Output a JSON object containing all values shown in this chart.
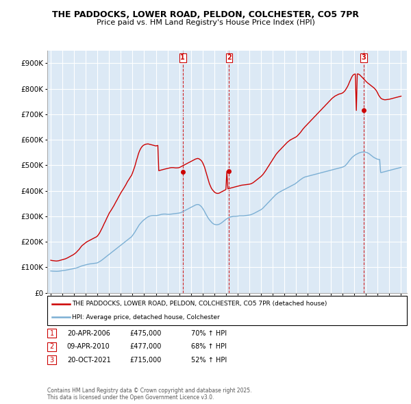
{
  "title": "THE PADDOCKS, LOWER ROAD, PELDON, COLCHESTER, CO5 7PR",
  "subtitle": "Price paid vs. HM Land Registry's House Price Index (HPI)",
  "ylim": [
    0,
    950000
  ],
  "yticks": [
    0,
    100000,
    200000,
    300000,
    400000,
    500000,
    600000,
    700000,
    800000,
    900000
  ],
  "ytick_labels": [
    "£0",
    "£100K",
    "£200K",
    "£300K",
    "£400K",
    "£500K",
    "£600K",
    "£700K",
    "£800K",
    "£900K"
  ],
  "plot_bg_color": "#dce9f5",
  "red_color": "#cc0000",
  "blue_color": "#7bafd4",
  "transaction_dates": [
    2006.3,
    2010.27,
    2021.8
  ],
  "transaction_values": [
    475000,
    477000,
    715000
  ],
  "transaction_labels": [
    "1",
    "2",
    "3"
  ],
  "legend_entry1": "THE PADDOCKS, LOWER ROAD, PELDON, COLCHESTER, CO5 7PR (detached house)",
  "legend_entry2": "HPI: Average price, detached house, Colchester",
  "table_entries": [
    [
      "1",
      "20-APR-2006",
      "£475,000",
      "70% ↑ HPI"
    ],
    [
      "2",
      "09-APR-2010",
      "£477,000",
      "68% ↑ HPI"
    ],
    [
      "3",
      "20-OCT-2021",
      "£715,000",
      "52% ↑ HPI"
    ]
  ],
  "footer": "Contains HM Land Registry data © Crown copyright and database right 2025.\nThis data is licensed under the Open Government Licence v3.0.",
  "hpi_x": [
    1995.0,
    1995.08,
    1995.17,
    1995.25,
    1995.33,
    1995.42,
    1995.5,
    1995.58,
    1995.67,
    1995.75,
    1995.83,
    1995.92,
    1996.0,
    1996.08,
    1996.17,
    1996.25,
    1996.33,
    1996.42,
    1996.5,
    1996.58,
    1996.67,
    1996.75,
    1996.83,
    1996.92,
    1997.0,
    1997.08,
    1997.17,
    1997.25,
    1997.33,
    1997.42,
    1997.5,
    1997.58,
    1997.67,
    1997.75,
    1997.83,
    1997.92,
    1998.0,
    1998.08,
    1998.17,
    1998.25,
    1998.33,
    1998.42,
    1998.5,
    1998.58,
    1998.67,
    1998.75,
    1998.83,
    1998.92,
    1999.0,
    1999.08,
    1999.17,
    1999.25,
    1999.33,
    1999.42,
    1999.5,
    1999.58,
    1999.67,
    1999.75,
    1999.83,
    1999.92,
    2000.0,
    2000.08,
    2000.17,
    2000.25,
    2000.33,
    2000.42,
    2000.5,
    2000.58,
    2000.67,
    2000.75,
    2000.83,
    2000.92,
    2001.0,
    2001.08,
    2001.17,
    2001.25,
    2001.33,
    2001.42,
    2001.5,
    2001.58,
    2001.67,
    2001.75,
    2001.83,
    2001.92,
    2002.0,
    2002.08,
    2002.17,
    2002.25,
    2002.33,
    2002.42,
    2002.5,
    2002.58,
    2002.67,
    2002.75,
    2002.83,
    2002.92,
    2003.0,
    2003.08,
    2003.17,
    2003.25,
    2003.33,
    2003.42,
    2003.5,
    2003.58,
    2003.67,
    2003.75,
    2003.83,
    2003.92,
    2004.0,
    2004.08,
    2004.17,
    2004.25,
    2004.33,
    2004.42,
    2004.5,
    2004.58,
    2004.67,
    2004.75,
    2004.83,
    2004.92,
    2005.0,
    2005.08,
    2005.17,
    2005.25,
    2005.33,
    2005.42,
    2005.5,
    2005.58,
    2005.67,
    2005.75,
    2005.83,
    2005.92,
    2006.0,
    2006.08,
    2006.17,
    2006.25,
    2006.33,
    2006.42,
    2006.5,
    2006.58,
    2006.67,
    2006.75,
    2006.83,
    2006.92,
    2007.0,
    2007.08,
    2007.17,
    2007.25,
    2007.33,
    2007.42,
    2007.5,
    2007.58,
    2007.67,
    2007.75,
    2007.83,
    2007.92,
    2008.0,
    2008.08,
    2008.17,
    2008.25,
    2008.33,
    2008.42,
    2008.5,
    2008.58,
    2008.67,
    2008.75,
    2008.83,
    2008.92,
    2009.0,
    2009.08,
    2009.17,
    2009.25,
    2009.33,
    2009.42,
    2009.5,
    2009.58,
    2009.67,
    2009.75,
    2009.83,
    2009.92,
    2010.0,
    2010.08,
    2010.17,
    2010.25,
    2010.33,
    2010.42,
    2010.5,
    2010.58,
    2010.67,
    2010.75,
    2010.83,
    2010.92,
    2011.0,
    2011.08,
    2011.17,
    2011.25,
    2011.33,
    2011.42,
    2011.5,
    2011.58,
    2011.67,
    2011.75,
    2011.83,
    2011.92,
    2012.0,
    2012.08,
    2012.17,
    2012.25,
    2012.33,
    2012.42,
    2012.5,
    2012.58,
    2012.67,
    2012.75,
    2012.83,
    2012.92,
    2013.0,
    2013.08,
    2013.17,
    2013.25,
    2013.33,
    2013.42,
    2013.5,
    2013.58,
    2013.67,
    2013.75,
    2013.83,
    2013.92,
    2014.0,
    2014.08,
    2014.17,
    2014.25,
    2014.33,
    2014.42,
    2014.5,
    2014.58,
    2014.67,
    2014.75,
    2014.83,
    2014.92,
    2015.0,
    2015.08,
    2015.17,
    2015.25,
    2015.33,
    2015.42,
    2015.5,
    2015.58,
    2015.67,
    2015.75,
    2015.83,
    2015.92,
    2016.0,
    2016.08,
    2016.17,
    2016.25,
    2016.33,
    2016.42,
    2016.5,
    2016.58,
    2016.67,
    2016.75,
    2016.83,
    2016.92,
    2017.0,
    2017.08,
    2017.17,
    2017.25,
    2017.33,
    2017.42,
    2017.5,
    2017.58,
    2017.67,
    2017.75,
    2017.83,
    2017.92,
    2018.0,
    2018.08,
    2018.17,
    2018.25,
    2018.33,
    2018.42,
    2018.5,
    2018.58,
    2018.67,
    2018.75,
    2018.83,
    2018.92,
    2019.0,
    2019.08,
    2019.17,
    2019.25,
    2019.33,
    2019.42,
    2019.5,
    2019.58,
    2019.67,
    2019.75,
    2019.83,
    2019.92,
    2020.0,
    2020.08,
    2020.17,
    2020.25,
    2020.33,
    2020.42,
    2020.5,
    2020.58,
    2020.67,
    2020.75,
    2020.83,
    2020.92,
    2021.0,
    2021.08,
    2021.17,
    2021.25,
    2021.33,
    2021.42,
    2021.5,
    2021.58,
    2021.67,
    2021.75,
    2021.83,
    2021.92,
    2022.0,
    2022.08,
    2022.17,
    2022.25,
    2022.33,
    2022.42,
    2022.5,
    2022.58,
    2022.67,
    2022.75,
    2022.83,
    2022.92,
    2023.0,
    2023.08,
    2023.17,
    2023.25,
    2023.33,
    2023.42,
    2023.5,
    2023.58,
    2023.67,
    2023.75,
    2023.83,
    2023.92,
    2024.0,
    2024.08,
    2024.17,
    2024.25,
    2024.33,
    2024.42,
    2024.5,
    2024.58,
    2024.67,
    2024.75,
    2024.83,
    2024.92,
    2025.0
  ],
  "hpi_y": [
    86000,
    85500,
    85200,
    85000,
    84800,
    84700,
    84600,
    84700,
    85000,
    85500,
    86000,
    86500,
    87000,
    87500,
    88000,
    88800,
    89500,
    90200,
    91000,
    91800,
    92500,
    93200,
    94000,
    94700,
    95500,
    96500,
    97500,
    98500,
    100000,
    101500,
    103000,
    104500,
    106000,
    107000,
    108000,
    109000,
    110000,
    111000,
    112000,
    112800,
    113500,
    114000,
    114500,
    115000,
    115500,
    116000,
    116500,
    117000,
    118000,
    120000,
    122000,
    124500,
    127000,
    130000,
    133000,
    136000,
    139000,
    142000,
    145000,
    148000,
    151000,
    154000,
    157000,
    160000,
    163000,
    166000,
    169000,
    172000,
    175000,
    178000,
    181000,
    184000,
    187000,
    190000,
    193000,
    196000,
    199000,
    202000,
    205000,
    208000,
    211000,
    214000,
    217000,
    220000,
    225000,
    230000,
    236000,
    242000,
    248000,
    255000,
    261000,
    267000,
    272000,
    276000,
    280000,
    284000,
    287000,
    290000,
    293000,
    296000,
    298000,
    300000,
    301000,
    302000,
    302500,
    303000,
    303000,
    303000,
    303000,
    303500,
    304000,
    305000,
    306000,
    307000,
    308000,
    308500,
    309000,
    309000,
    309000,
    308500,
    308000,
    308000,
    308000,
    308500,
    309000,
    309500,
    310000,
    310500,
    311000,
    311500,
    312000,
    312500,
    313000,
    314000,
    315000,
    317000,
    319000,
    321000,
    323000,
    325000,
    327000,
    329000,
    331000,
    333000,
    335000,
    337000,
    339000,
    341000,
    343000,
    345000,
    346000,
    346500,
    346000,
    344000,
    341000,
    337000,
    332000,
    326000,
    319000,
    312000,
    305000,
    298000,
    292000,
    287000,
    282000,
    278000,
    274000,
    271000,
    269000,
    268000,
    267000,
    267000,
    268000,
    269000,
    271000,
    273000,
    276000,
    279000,
    282000,
    285000,
    288000,
    291000,
    293000,
    295000,
    297000,
    298000,
    299000,
    299500,
    300000,
    300000,
    300000,
    300500,
    301000,
    301500,
    302000,
    302000,
    302000,
    302000,
    302000,
    302500,
    303000,
    303500,
    304000,
    304500,
    305000,
    306000,
    307000,
    308500,
    310000,
    312000,
    314000,
    316000,
    318000,
    320000,
    322000,
    324000,
    326000,
    329000,
    332000,
    336000,
    340000,
    344000,
    348000,
    352000,
    356000,
    360000,
    364000,
    368000,
    372000,
    376000,
    380000,
    384000,
    387000,
    390000,
    393000,
    395000,
    397000,
    399000,
    401000,
    403000,
    405000,
    407000,
    409000,
    411000,
    413000,
    415000,
    417000,
    419000,
    421000,
    423000,
    425000,
    427000,
    430000,
    433000,
    436000,
    439000,
    442000,
    445000,
    448000,
    450000,
    452000,
    454000,
    455000,
    456000,
    457000,
    458000,
    459000,
    460000,
    461000,
    462000,
    463000,
    464000,
    465000,
    466000,
    467000,
    468000,
    469000,
    470000,
    471000,
    472000,
    473000,
    474000,
    475000,
    476000,
    477000,
    478000,
    479000,
    480000,
    481000,
    482000,
    483000,
    484000,
    485000,
    486000,
    487000,
    488000,
    489000,
    490000,
    491000,
    492000,
    493000,
    495000,
    497000,
    500000,
    504000,
    509000,
    514000,
    519000,
    524000,
    528000,
    532000,
    535000,
    538000,
    541000,
    543000,
    545000,
    547000,
    549000,
    550000,
    551000,
    552000,
    552000,
    552000,
    552000,
    551000,
    550000,
    548000,
    546000,
    543000,
    540000,
    537000,
    534000,
    531000,
    529000,
    527000,
    525000,
    524000,
    523000,
    523000,
    472000,
    472000,
    473000,
    474000,
    475000,
    476000,
    477000,
    478000,
    479000,
    480000,
    481000,
    482000,
    483000,
    484000,
    485000,
    486000,
    487000,
    488000,
    489000,
    490000,
    491000,
    492000
  ],
  "red_x": [
    1995.0,
    1995.08,
    1995.17,
    1995.25,
    1995.33,
    1995.42,
    1995.5,
    1995.58,
    1995.67,
    1995.75,
    1995.83,
    1995.92,
    1996.0,
    1996.08,
    1996.17,
    1996.25,
    1996.33,
    1996.42,
    1996.5,
    1996.58,
    1996.67,
    1996.75,
    1996.83,
    1996.92,
    1997.0,
    1997.08,
    1997.17,
    1997.25,
    1997.33,
    1997.42,
    1997.5,
    1997.58,
    1997.67,
    1997.75,
    1997.83,
    1997.92,
    1998.0,
    1998.08,
    1998.17,
    1998.25,
    1998.33,
    1998.42,
    1998.5,
    1998.58,
    1998.67,
    1998.75,
    1998.83,
    1998.92,
    1999.0,
    1999.08,
    1999.17,
    1999.25,
    1999.33,
    1999.42,
    1999.5,
    1999.58,
    1999.67,
    1999.75,
    1999.83,
    1999.92,
    2000.0,
    2000.08,
    2000.17,
    2000.25,
    2000.33,
    2000.42,
    2000.5,
    2000.58,
    2000.67,
    2000.75,
    2000.83,
    2000.92,
    2001.0,
    2001.08,
    2001.17,
    2001.25,
    2001.33,
    2001.42,
    2001.5,
    2001.58,
    2001.67,
    2001.75,
    2001.83,
    2001.92,
    2002.0,
    2002.08,
    2002.17,
    2002.25,
    2002.33,
    2002.42,
    2002.5,
    2002.58,
    2002.67,
    2002.75,
    2002.83,
    2002.92,
    2003.0,
    2003.08,
    2003.17,
    2003.25,
    2003.33,
    2003.42,
    2003.5,
    2003.58,
    2003.67,
    2003.75,
    2003.83,
    2003.92,
    2004.0,
    2004.08,
    2004.17,
    2004.25,
    2004.33,
    2004.42,
    2004.5,
    2004.58,
    2004.67,
    2004.75,
    2004.83,
    2004.92,
    2005.0,
    2005.08,
    2005.17,
    2005.25,
    2005.33,
    2005.42,
    2005.5,
    2005.58,
    2005.67,
    2005.75,
    2005.83,
    2005.92,
    2006.0,
    2006.08,
    2006.17,
    2006.25,
    2006.33,
    2006.42,
    2006.5,
    2006.58,
    2006.67,
    2006.75,
    2006.83,
    2006.92,
    2007.0,
    2007.08,
    2007.17,
    2007.25,
    2007.33,
    2007.42,
    2007.5,
    2007.58,
    2007.67,
    2007.75,
    2007.83,
    2007.92,
    2008.0,
    2008.08,
    2008.17,
    2008.25,
    2008.33,
    2008.42,
    2008.5,
    2008.58,
    2008.67,
    2008.75,
    2008.83,
    2008.92,
    2009.0,
    2009.08,
    2009.17,
    2009.25,
    2009.33,
    2009.42,
    2009.5,
    2009.58,
    2009.67,
    2009.75,
    2009.83,
    2009.92,
    2010.0,
    2010.08,
    2010.17,
    2010.25,
    2010.33,
    2010.42,
    2010.5,
    2010.58,
    2010.67,
    2010.75,
    2010.83,
    2010.92,
    2011.0,
    2011.08,
    2011.17,
    2011.25,
    2011.33,
    2011.42,
    2011.5,
    2011.58,
    2011.67,
    2011.75,
    2011.83,
    2011.92,
    2012.0,
    2012.08,
    2012.17,
    2012.25,
    2012.33,
    2012.42,
    2012.5,
    2012.58,
    2012.67,
    2012.75,
    2012.83,
    2012.92,
    2013.0,
    2013.08,
    2013.17,
    2013.25,
    2013.33,
    2013.42,
    2013.5,
    2013.58,
    2013.67,
    2013.75,
    2013.83,
    2013.92,
    2014.0,
    2014.08,
    2014.17,
    2014.25,
    2014.33,
    2014.42,
    2014.5,
    2014.58,
    2014.67,
    2014.75,
    2014.83,
    2014.92,
    2015.0,
    2015.08,
    2015.17,
    2015.25,
    2015.33,
    2015.42,
    2015.5,
    2015.58,
    2015.67,
    2015.75,
    2015.83,
    2015.92,
    2016.0,
    2016.08,
    2016.17,
    2016.25,
    2016.33,
    2016.42,
    2016.5,
    2016.58,
    2016.67,
    2016.75,
    2016.83,
    2016.92,
    2017.0,
    2017.08,
    2017.17,
    2017.25,
    2017.33,
    2017.42,
    2017.5,
    2017.58,
    2017.67,
    2017.75,
    2017.83,
    2017.92,
    2018.0,
    2018.08,
    2018.17,
    2018.25,
    2018.33,
    2018.42,
    2018.5,
    2018.58,
    2018.67,
    2018.75,
    2018.83,
    2018.92,
    2019.0,
    2019.08,
    2019.17,
    2019.25,
    2019.33,
    2019.42,
    2019.5,
    2019.58,
    2019.67,
    2019.75,
    2019.83,
    2019.92,
    2020.0,
    2020.08,
    2020.17,
    2020.25,
    2020.33,
    2020.42,
    2020.5,
    2020.58,
    2020.67,
    2020.75,
    2020.83,
    2020.92,
    2021.0,
    2021.08,
    2021.17,
    2021.25,
    2021.33,
    2021.42,
    2021.5,
    2021.58,
    2021.67,
    2021.75,
    2021.83,
    2021.92,
    2022.0,
    2022.08,
    2022.17,
    2022.25,
    2022.33,
    2022.42,
    2022.5,
    2022.58,
    2022.67,
    2022.75,
    2022.83,
    2022.92,
    2023.0,
    2023.08,
    2023.17,
    2023.25,
    2023.33,
    2023.42,
    2023.5,
    2023.58,
    2023.67,
    2023.75,
    2023.83,
    2023.92,
    2024.0,
    2024.08,
    2024.17,
    2024.25,
    2024.33,
    2024.42,
    2024.5,
    2024.58,
    2024.67,
    2024.75,
    2024.83,
    2024.92,
    2025.0
  ],
  "red_y": [
    128000,
    127000,
    126500,
    126000,
    125500,
    125200,
    125000,
    125500,
    126000,
    127000,
    128000,
    129000,
    130000,
    131000,
    132000,
    133500,
    135000,
    137000,
    139000,
    141000,
    143000,
    145000,
    147000,
    149500,
    152000,
    155000,
    158000,
    162000,
    166000,
    170000,
    175000,
    180000,
    185000,
    188000,
    191000,
    194000,
    197000,
    200000,
    202000,
    204000,
    206000,
    208000,
    210000,
    212000,
    214000,
    216000,
    218000,
    220000,
    223000,
    228000,
    234000,
    241000,
    248000,
    256000,
    264000,
    272000,
    280000,
    288000,
    296000,
    304000,
    312000,
    318000,
    324000,
    330000,
    336000,
    343000,
    350000,
    357000,
    364000,
    371000,
    378000,
    385000,
    392000,
    398000,
    404000,
    410000,
    416000,
    423000,
    430000,
    437000,
    443000,
    449000,
    455000,
    461000,
    470000,
    480000,
    492000,
    504000,
    518000,
    531000,
    544000,
    554000,
    563000,
    569000,
    574000,
    578000,
    580000,
    582000,
    583000,
    583500,
    584000,
    583000,
    582000,
    581000,
    580000,
    579000,
    578000,
    577000,
    576000,
    577000,
    578000,
    479000,
    480000,
    481000,
    482000,
    483000,
    484000,
    485000,
    486000,
    487000,
    488000,
    489000,
    490000,
    490500,
    491000,
    491000,
    491000,
    490500,
    490000,
    490000,
    490000,
    490500,
    491000,
    493000,
    495000,
    497000,
    499000,
    501000,
    503000,
    505000,
    507000,
    509000,
    511000,
    513000,
    515000,
    517000,
    519000,
    521000,
    523000,
    525000,
    526000,
    527000,
    526000,
    524000,
    521000,
    517000,
    511000,
    503000,
    493000,
    481000,
    468000,
    454000,
    441000,
    429000,
    419000,
    411000,
    405000,
    400000,
    396000,
    393000,
    391000,
    390000,
    390000,
    391000,
    393000,
    395000,
    397000,
    399000,
    401000,
    403000,
    405000,
    477000,
    408000,
    409000,
    410000,
    411000,
    412000,
    413000,
    414000,
    415000,
    416000,
    417000,
    418000,
    419000,
    420000,
    421000,
    422000,
    422500,
    423000,
    423500,
    424000,
    424500,
    425000,
    425500,
    426000,
    427000,
    428000,
    430000,
    432000,
    435000,
    438000,
    441000,
    444000,
    447000,
    450000,
    453000,
    456000,
    460000,
    464000,
    469000,
    474000,
    480000,
    486000,
    492000,
    498000,
    504000,
    510000,
    516000,
    522000,
    528000,
    534000,
    540000,
    545000,
    550000,
    554000,
    558000,
    562000,
    566000,
    570000,
    574000,
    578000,
    582000,
    586000,
    590000,
    593000,
    596000,
    599000,
    601000,
    603000,
    605000,
    607000,
    609000,
    611000,
    614000,
    618000,
    622000,
    626000,
    631000,
    636000,
    641000,
    646000,
    650000,
    654000,
    658000,
    662000,
    666000,
    670000,
    674000,
    678000,
    682000,
    686000,
    690000,
    694000,
    698000,
    702000,
    706000,
    710000,
    714000,
    718000,
    722000,
    726000,
    730000,
    734000,
    738000,
    742000,
    746000,
    750000,
    754000,
    758000,
    762000,
    765000,
    768000,
    771000,
    773000,
    775000,
    777000,
    779000,
    780000,
    781000,
    782000,
    784000,
    787000,
    791000,
    796000,
    802000,
    809000,
    817000,
    826000,
    835000,
    843000,
    850000,
    855000,
    857000,
    858000,
    715000,
    858000,
    858000,
    856000,
    853000,
    849000,
    845000,
    841000,
    837000,
    833000,
    829000,
    825000,
    822000,
    819000,
    816000,
    813000,
    810000,
    807000,
    804000,
    800000,
    796000,
    790000,
    783000,
    775000,
    769000,
    764000,
    761000,
    759000,
    758000,
    757000,
    757000,
    757500,
    758000,
    758500,
    759000,
    760000,
    761000,
    762000,
    763000,
    764000,
    765000,
    766000,
    767000,
    768000,
    769000,
    770000,
    771000
  ]
}
